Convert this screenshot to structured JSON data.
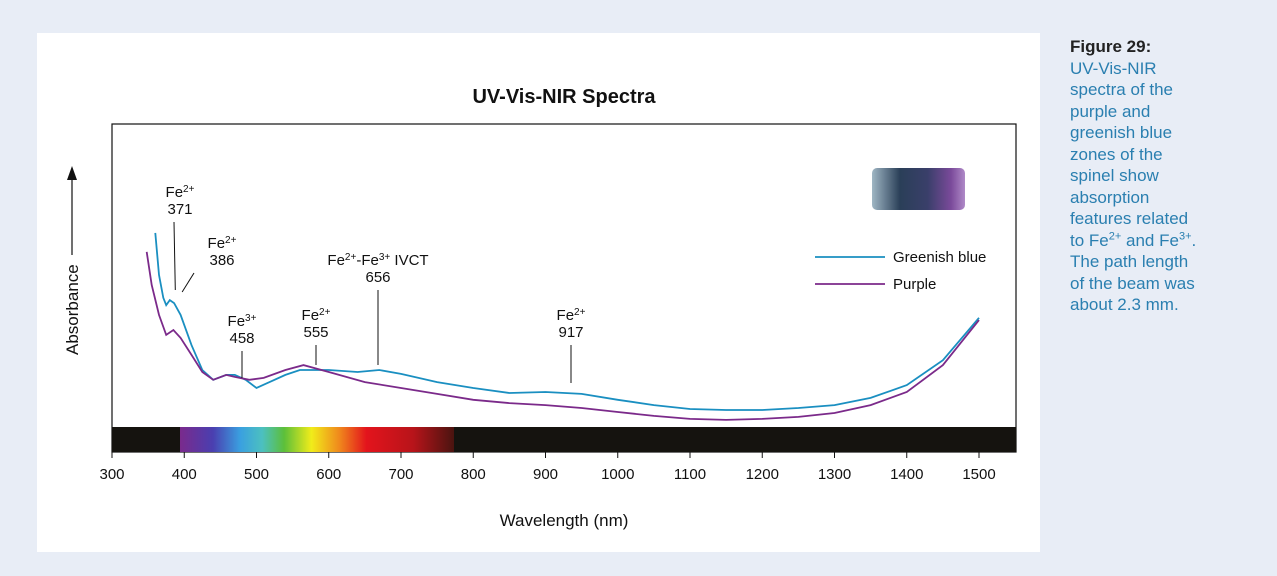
{
  "chart_data": {
    "type": "line",
    "title": "UV-Vis-NIR Spectra",
    "x_label": "Wavelength (nm)",
    "y_label": "Absorbance",
    "xlim": [
      300,
      1550
    ],
    "xticks": [
      300,
      400,
      500,
      600,
      700,
      800,
      900,
      1000,
      1100,
      1200,
      1300,
      1400,
      1500
    ],
    "ylim": [
      0,
      1
    ],
    "series": [
      {
        "name": "Greenish blue",
        "color": "#1a8fc1",
        "x": [
          360,
          365,
          371,
          375,
          380,
          386,
          395,
          410,
          425,
          440,
          458,
          470,
          485,
          500,
          515,
          540,
          560,
          600,
          640,
          670,
          700,
          750,
          800,
          850,
          900,
          950,
          1000,
          1050,
          1100,
          1150,
          1200,
          1250,
          1300,
          1350,
          1400,
          1450,
          1500
        ],
        "values": [
          0.668,
          0.54,
          0.47,
          0.448,
          0.463,
          0.454,
          0.418,
          0.326,
          0.25,
          0.22,
          0.235,
          0.235,
          0.22,
          0.195,
          0.21,
          0.235,
          0.25,
          0.25,
          0.244,
          0.25,
          0.238,
          0.213,
          0.195,
          0.18,
          0.183,
          0.177,
          0.159,
          0.143,
          0.131,
          0.128,
          0.128,
          0.134,
          0.143,
          0.165,
          0.204,
          0.28,
          0.409
        ]
      },
      {
        "name": "Purple",
        "color": "#7b2a8a",
        "x": [
          348,
          355,
          365,
          375,
          385,
          395,
          410,
          425,
          440,
          458,
          470,
          490,
          510,
          540,
          565,
          600,
          650,
          700,
          750,
          800,
          850,
          900,
          950,
          1000,
          1050,
          1100,
          1150,
          1200,
          1250,
          1300,
          1350,
          1400,
          1450,
          1500
        ],
        "values": [
          0.61,
          0.509,
          0.418,
          0.357,
          0.372,
          0.348,
          0.296,
          0.244,
          0.22,
          0.235,
          0.229,
          0.22,
          0.226,
          0.25,
          0.265,
          0.244,
          0.213,
          0.195,
          0.177,
          0.159,
          0.149,
          0.143,
          0.134,
          0.122,
          0.11,
          0.101,
          0.098,
          0.101,
          0.107,
          0.119,
          0.143,
          0.183,
          0.265,
          0.402
        ]
      }
    ],
    "legend": "upper right",
    "annotations": [
      {
        "parts": [
          {
            "text": "Fe"
          },
          {
            "sup": "2+"
          }
        ],
        "x": 371
      },
      {
        "parts": [
          {
            "text": "Fe"
          },
          {
            "sup": "2+"
          }
        ],
        "x": 386
      },
      {
        "parts": [
          {
            "text": "Fe"
          },
          {
            "sup": "3+"
          }
        ],
        "x": 458
      },
      {
        "parts": [
          {
            "text": "Fe"
          },
          {
            "sup": "2+"
          }
        ],
        "x": 555
      },
      {
        "parts": [
          {
            "text": "Fe"
          },
          {
            "sup": "2+"
          },
          {
            "text": "-Fe"
          },
          {
            "sup": "3+"
          },
          {
            "text": " IVCT"
          }
        ],
        "x": 656
      },
      {
        "parts": [
          {
            "text": "Fe"
          },
          {
            "sup": "2+"
          }
        ],
        "x": 917
      }
    ]
  },
  "caption": {
    "title": "Figure 29:",
    "lines": [
      [
        {
          "text": "UV-Vis-NIR"
        }
      ],
      [
        {
          "text": "spectra of the"
        }
      ],
      [
        {
          "text": "purple and"
        }
      ],
      [
        {
          "text": "greenish blue"
        }
      ],
      [
        {
          "text": "zones of the"
        }
      ],
      [
        {
          "text": "spinel show"
        }
      ],
      [
        {
          "text": "absorption"
        }
      ],
      [
        {
          "text": "features related"
        }
      ],
      [
        {
          "text": "to Fe"
        },
        {
          "sup": "2+"
        },
        {
          "text": " and Fe"
        },
        {
          "sup": "3+"
        },
        {
          "text": "."
        }
      ],
      [
        {
          "text": "The path length"
        }
      ],
      [
        {
          "text": "of the beam was"
        }
      ],
      [
        {
          "text": "about 2.3 mm."
        }
      ]
    ]
  }
}
